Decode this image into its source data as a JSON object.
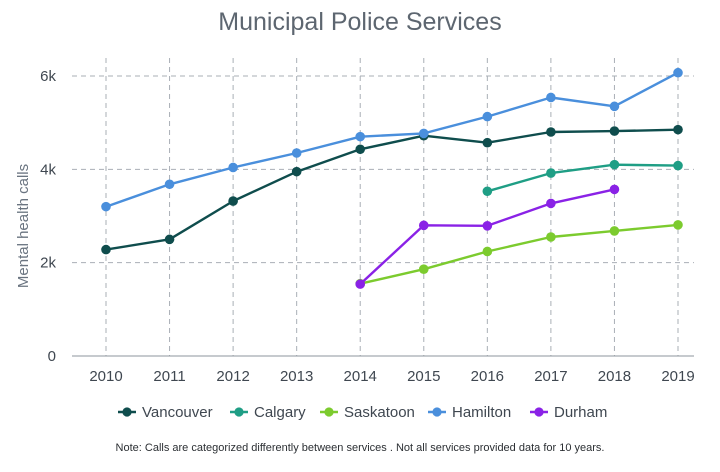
{
  "chart_data": {
    "type": "line",
    "title": "Municipal Police Services",
    "xlabel": "",
    "ylabel": "Mental health calls",
    "x": [
      2010,
      2011,
      2012,
      2013,
      2014,
      2015,
      2016,
      2017,
      2018,
      2019
    ],
    "x_tick_labels": [
      "2010",
      "2011",
      "2012",
      "2013",
      "2014",
      "2015",
      "2016",
      "2017",
      "2018",
      "2019"
    ],
    "ylim": [
      0,
      6000
    ],
    "y_ticks": [
      0,
      2000,
      4000,
      6000
    ],
    "y_tick_labels": [
      "0",
      "2k",
      "4k",
      "6k"
    ],
    "grid": true,
    "legend_position": "bottom",
    "series": [
      {
        "name": "Vancouver",
        "color": "#0f4d4d",
        "values": [
          2280,
          2500,
          3320,
          3950,
          4430,
          4720,
          4570,
          4800,
          4820,
          4850
        ]
      },
      {
        "name": "Calgary",
        "color": "#1f9e85",
        "values": [
          null,
          null,
          null,
          null,
          null,
          null,
          3530,
          3920,
          4100,
          4080
        ]
      },
      {
        "name": "Saskatoon",
        "color": "#7ccb2e",
        "values": [
          null,
          null,
          null,
          null,
          1550,
          1860,
          2240,
          2550,
          2680,
          2810
        ]
      },
      {
        "name": "Hamilton",
        "color": "#4a8fdc",
        "values": [
          3200,
          3680,
          4040,
          4350,
          4700,
          4770,
          5130,
          5540,
          5350,
          6070
        ]
      },
      {
        "name": "Durham",
        "color": "#8a22e6",
        "values": [
          null,
          null,
          null,
          null,
          1540,
          2800,
          2790,
          3270,
          3570,
          null
        ]
      }
    ],
    "note": "Note: Calls are categorized differently between services . Not all services  provided data for 10 years."
  }
}
